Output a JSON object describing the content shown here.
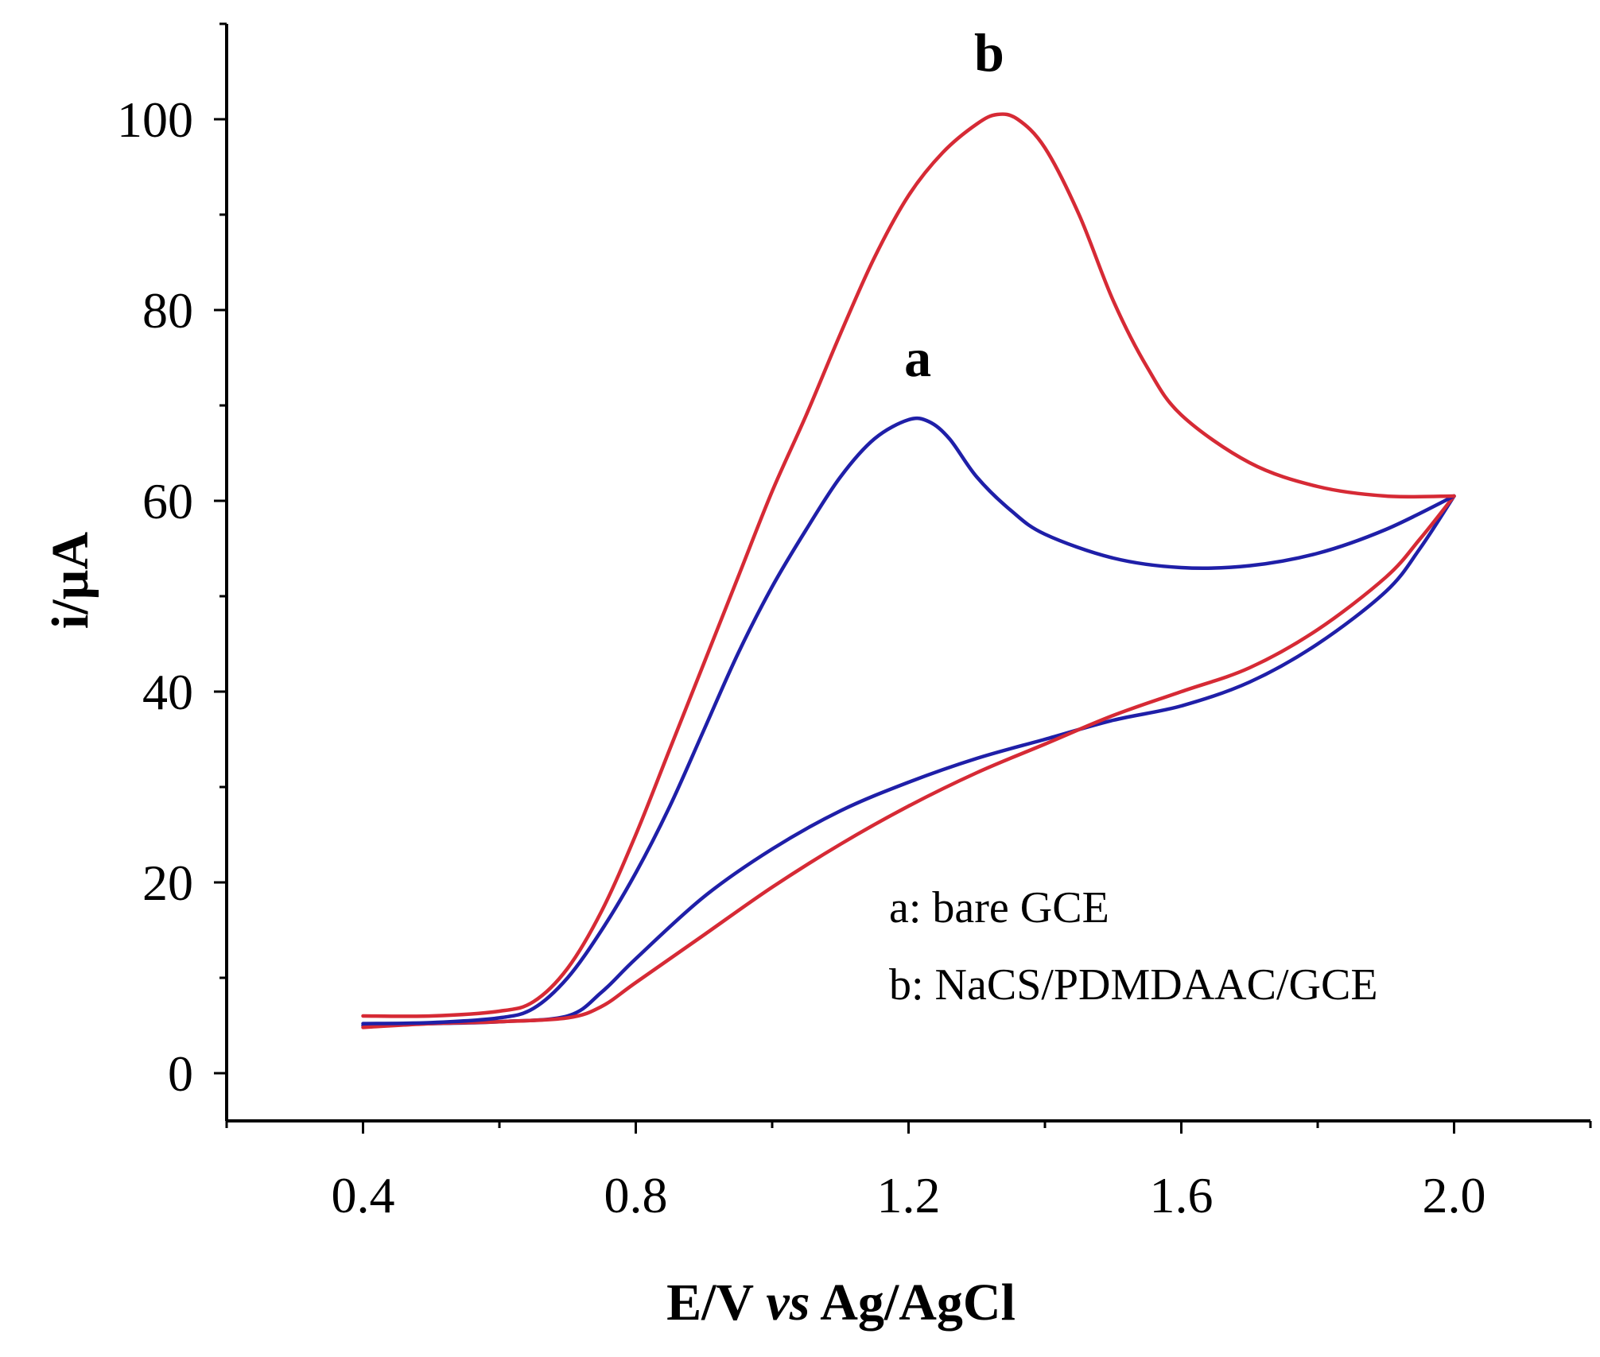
{
  "chart_data": {
    "type": "line",
    "title": "",
    "xlabel": {
      "prefix": "E/V ",
      "italic": "vs",
      "suffix": " Ag/AgCl"
    },
    "ylabel": "i/µA",
    "xlim": [
      0.2,
      2.2
    ],
    "ylim": [
      -5,
      110
    ],
    "x_ticks": [
      {
        "value": 0.4,
        "label": "0.4"
      },
      {
        "value": 0.8,
        "label": "0.8"
      },
      {
        "value": 1.2,
        "label": "1.2"
      },
      {
        "value": 1.6,
        "label": "1.6"
      },
      {
        "value": 2.0,
        "label": "2.0"
      }
    ],
    "x_minor_ticks": [
      0.2,
      0.6,
      1.0,
      1.4,
      1.8,
      2.2
    ],
    "y_ticks": [
      {
        "value": 0,
        "label": "0"
      },
      {
        "value": 20,
        "label": "20"
      },
      {
        "value": 40,
        "label": "40"
      },
      {
        "value": 60,
        "label": "60"
      },
      {
        "value": 80,
        "label": "80"
      },
      {
        "value": 100,
        "label": "100"
      }
    ],
    "y_minor_ticks": [
      10,
      30,
      50,
      70,
      90,
      110
    ],
    "series": [
      {
        "name": "a",
        "legend": "a: bare GCE",
        "color": "#1f1fa8",
        "peak": [
          1.21,
          68.5
        ],
        "forward": [
          [
            0.4,
            5.2
          ],
          [
            0.5,
            5.3
          ],
          [
            0.6,
            5.8
          ],
          [
            0.65,
            6.8
          ],
          [
            0.7,
            10.0
          ],
          [
            0.75,
            15.0
          ],
          [
            0.8,
            21.0
          ],
          [
            0.85,
            28.0
          ],
          [
            0.9,
            36.0
          ],
          [
            0.95,
            44.0
          ],
          [
            1.0,
            51.0
          ],
          [
            1.05,
            57.0
          ],
          [
            1.1,
            62.5
          ],
          [
            1.15,
            66.5
          ],
          [
            1.2,
            68.5
          ],
          [
            1.23,
            68.3
          ],
          [
            1.26,
            66.5
          ],
          [
            1.3,
            62.5
          ],
          [
            1.35,
            59.0
          ],
          [
            1.4,
            56.5
          ],
          [
            1.5,
            54.0
          ],
          [
            1.6,
            53.0
          ],
          [
            1.7,
            53.2
          ],
          [
            1.8,
            54.5
          ],
          [
            1.9,
            57.0
          ],
          [
            2.0,
            60.5
          ]
        ],
        "reverse": [
          [
            2.0,
            60.5
          ],
          [
            1.95,
            55.0
          ],
          [
            1.9,
            50.5
          ],
          [
            1.8,
            45.0
          ],
          [
            1.7,
            41.0
          ],
          [
            1.6,
            38.5
          ],
          [
            1.5,
            37.0
          ],
          [
            1.4,
            35.0
          ],
          [
            1.3,
            33.0
          ],
          [
            1.2,
            30.5
          ],
          [
            1.1,
            27.5
          ],
          [
            1.0,
            23.5
          ],
          [
            0.9,
            18.5
          ],
          [
            0.8,
            12.0
          ],
          [
            0.75,
            8.5
          ],
          [
            0.7,
            6.0
          ],
          [
            0.6,
            5.4
          ],
          [
            0.5,
            5.2
          ],
          [
            0.4,
            5.0
          ]
        ]
      },
      {
        "name": "b",
        "legend": "b: NaCS/PDMDAAC/GCE",
        "color": "#d62a35",
        "peak": [
          1.33,
          100.5
        ],
        "forward": [
          [
            0.4,
            6.0
          ],
          [
            0.5,
            6.0
          ],
          [
            0.6,
            6.5
          ],
          [
            0.65,
            7.5
          ],
          [
            0.7,
            11.0
          ],
          [
            0.75,
            17.0
          ],
          [
            0.8,
            25.0
          ],
          [
            0.85,
            34.0
          ],
          [
            0.9,
            43.0
          ],
          [
            0.95,
            52.0
          ],
          [
            1.0,
            61.0
          ],
          [
            1.05,
            69.0
          ],
          [
            1.1,
            77.5
          ],
          [
            1.15,
            85.5
          ],
          [
            1.2,
            92.0
          ],
          [
            1.25,
            96.5
          ],
          [
            1.3,
            99.5
          ],
          [
            1.33,
            100.5
          ],
          [
            1.36,
            100.0
          ],
          [
            1.4,
            97.0
          ],
          [
            1.45,
            90.0
          ],
          [
            1.5,
            81.0
          ],
          [
            1.55,
            74.0
          ],
          [
            1.6,
            69.0
          ],
          [
            1.7,
            64.0
          ],
          [
            1.8,
            61.5
          ],
          [
            1.9,
            60.5
          ],
          [
            2.0,
            60.5
          ]
        ],
        "reverse": [
          [
            2.0,
            60.5
          ],
          [
            1.95,
            56.0
          ],
          [
            1.9,
            52.0
          ],
          [
            1.8,
            46.5
          ],
          [
            1.7,
            42.5
          ],
          [
            1.6,
            40.0
          ],
          [
            1.5,
            37.5
          ],
          [
            1.4,
            34.5
          ],
          [
            1.3,
            31.5
          ],
          [
            1.2,
            28.0
          ],
          [
            1.1,
            24.0
          ],
          [
            1.0,
            19.5
          ],
          [
            0.9,
            14.5
          ],
          [
            0.8,
            9.5
          ],
          [
            0.75,
            7.0
          ],
          [
            0.7,
            5.8
          ],
          [
            0.6,
            5.4
          ],
          [
            0.5,
            5.2
          ],
          [
            0.4,
            4.8
          ]
        ]
      }
    ],
    "annotations": [
      {
        "text": "a",
        "series": "a"
      },
      {
        "text": "b",
        "series": "b"
      }
    ],
    "legend_position": "bottom-right",
    "grid": false
  }
}
